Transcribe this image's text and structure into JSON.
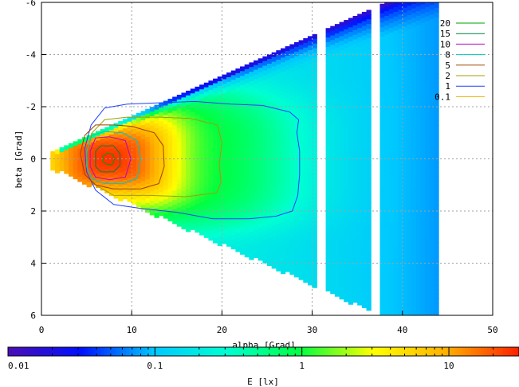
{
  "chart_data": {
    "type": "heatmap",
    "title": "",
    "xlabel": "alpha [Grad]",
    "ylabel": "beta [Grad]",
    "xlim": [
      0,
      50
    ],
    "ylim": [
      6,
      -6
    ],
    "y_axis_inverted": true,
    "xticks": [
      "0",
      "10",
      "20",
      "30",
      "40",
      "50"
    ],
    "yticks": [
      "-6",
      "-4",
      "-2",
      "0",
      "2",
      "4",
      "6"
    ],
    "grid": true,
    "legend_position": "top-right",
    "colorbar": {
      "label": "E [lx]",
      "scale": "log",
      "range": [
        0.01,
        30
      ],
      "ticks": [
        "0.01",
        "0.1",
        "1",
        "10"
      ],
      "colors": [
        "#4b0fb4",
        "#0010ff",
        "#00c8ff",
        "#00ffd2",
        "#00ff40",
        "#ffff00",
        "#ffb000",
        "#ff2000"
      ]
    },
    "contour_levels": [
      {
        "level": "20",
        "color": "#00a000"
      },
      {
        "level": "15",
        "color": "#008040"
      },
      {
        "level": "10",
        "color": "#c000c0"
      },
      {
        "level": "8",
        "color": "#00c8c8"
      },
      {
        "level": "5",
        "color": "#a04000"
      },
      {
        "level": "2",
        "color": "#a0a000"
      },
      {
        "level": "1",
        "color": "#2040ff"
      },
      {
        "level": "0.1",
        "color": "#e8b000"
      }
    ],
    "field": {
      "peak_lx": 25,
      "peak_alpha": 7.5,
      "peak_beta": 0,
      "domain_apex_alpha": 1,
      "domain_max_alpha": 44,
      "domain_half_angle_slope": 0.155
    },
    "column_strips_alpha": [
      [
        1,
        13
      ],
      [
        13,
        15.5
      ],
      [
        15.5,
        17
      ],
      [
        17,
        18.5
      ],
      [
        18.5,
        21
      ],
      [
        21,
        23.5
      ],
      [
        23.5,
        26.5
      ],
      [
        26.5,
        30.5
      ],
      [
        31.5,
        36.5
      ],
      [
        37.5,
        44
      ]
    ],
    "contours": [
      {
        "level": "1",
        "points": [
          [
            4.8,
            -0.4
          ],
          [
            5.5,
            -1.3
          ],
          [
            7,
            -1.95
          ],
          [
            9.5,
            -2.1
          ],
          [
            13,
            -2.15
          ],
          [
            17,
            -2.2
          ],
          [
            21,
            -2.1
          ],
          [
            24.5,
            -2.05
          ],
          [
            27.5,
            -1.8
          ],
          [
            28.5,
            -1.5
          ],
          [
            28.3,
            -1
          ],
          [
            28.6,
            -0.3
          ],
          [
            28.6,
            0.6
          ],
          [
            28.4,
            1.4
          ],
          [
            27.8,
            2
          ],
          [
            26,
            2.2
          ],
          [
            23,
            2.3
          ],
          [
            19,
            2.3
          ],
          [
            15,
            2.05
          ],
          [
            11,
            1.9
          ],
          [
            8,
            1.75
          ],
          [
            6,
            1.2
          ],
          [
            5,
            0.5
          ]
        ]
      },
      {
        "level": "2",
        "points": [
          [
            5,
            -0.2
          ],
          [
            5.6,
            -1
          ],
          [
            7,
            -1.5
          ],
          [
            9.5,
            -1.6
          ],
          [
            13,
            -1.6
          ],
          [
            16.5,
            -1.55
          ],
          [
            19.5,
            -1.3
          ],
          [
            20,
            -0.6
          ],
          [
            19.7,
            0.2
          ],
          [
            19.9,
            0.9
          ],
          [
            19.4,
            1.3
          ],
          [
            16,
            1.45
          ],
          [
            12,
            1.4
          ],
          [
            8,
            1.4
          ],
          [
            6,
            1
          ],
          [
            5.1,
            0.4
          ]
        ]
      },
      {
        "level": "5",
        "points": [
          [
            4.3,
            -0.2
          ],
          [
            4.8,
            -0.9
          ],
          [
            6,
            -1.3
          ],
          [
            8,
            -1.3
          ],
          [
            10,
            -1.25
          ],
          [
            12.5,
            -1
          ],
          [
            13.5,
            -0.5
          ],
          [
            13.6,
            0.3
          ],
          [
            13,
            0.95
          ],
          [
            11,
            1.15
          ],
          [
            8,
            1.15
          ],
          [
            6,
            1
          ],
          [
            4.8,
            0.6
          ]
        ]
      },
      {
        "level": "8",
        "points": [
          [
            5,
            -0.3
          ],
          [
            5.6,
            -0.9
          ],
          [
            7,
            -1.05
          ],
          [
            9,
            -1.0
          ],
          [
            10.6,
            -0.7
          ],
          [
            11,
            0
          ],
          [
            10.6,
            0.75
          ],
          [
            9,
            0.95
          ],
          [
            7,
            0.95
          ],
          [
            5.6,
            0.75
          ],
          [
            5,
            0.3
          ]
        ]
      },
      {
        "level": "10",
        "points": [
          [
            5.4,
            -0.3
          ],
          [
            6,
            -0.8
          ],
          [
            7.5,
            -0.85
          ],
          [
            9.3,
            -0.7
          ],
          [
            9.9,
            0
          ],
          [
            9.3,
            0.7
          ],
          [
            7.5,
            0.8
          ],
          [
            6,
            0.7
          ],
          [
            5.4,
            0.3
          ]
        ]
      },
      {
        "level": "15",
        "points": [
          [
            6,
            -0.3
          ],
          [
            6.6,
            -0.5
          ],
          [
            8,
            -0.5
          ],
          [
            8.7,
            -0.2
          ],
          [
            8.7,
            0.25
          ],
          [
            8,
            0.5
          ],
          [
            6.6,
            0.5
          ],
          [
            6,
            0.3
          ]
        ]
      },
      {
        "level": "20",
        "points": [
          [
            6.8,
            -0.1
          ],
          [
            7.3,
            -0.22
          ],
          [
            7.9,
            -0.18
          ],
          [
            8.1,
            0
          ],
          [
            7.9,
            0.2
          ],
          [
            7.3,
            0.22
          ],
          [
            6.8,
            0.12
          ]
        ]
      }
    ]
  }
}
